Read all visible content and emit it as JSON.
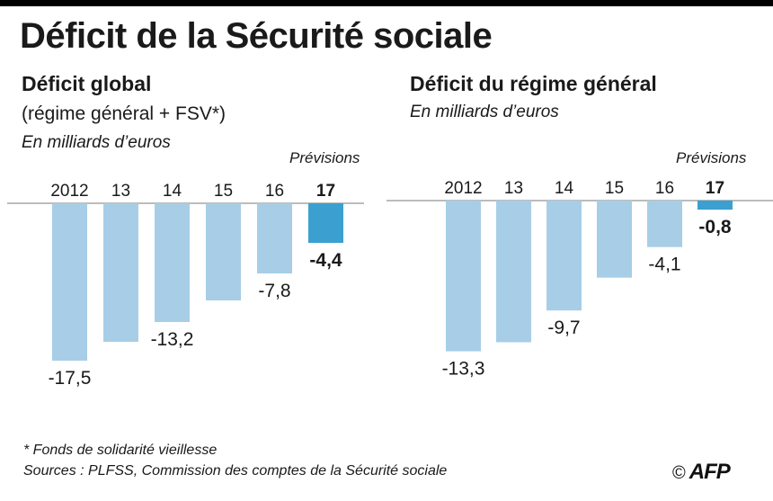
{
  "title": "Déficit de la Sécurité sociale",
  "left_panel": {
    "heading": "Déficit global",
    "subheading": "(régime général + FSV*)",
    "unit": "En milliards d’euros",
    "forecast_label": "Prévisions"
  },
  "right_panel": {
    "heading": "Déficit du régime général",
    "unit": "En milliards d’euros",
    "forecast_label": "Prévisions"
  },
  "chart_data": [
    {
      "type": "bar",
      "title": "Déficit global (régime général + FSV*)",
      "ylabel": "En milliards d’euros",
      "categories": [
        "2012",
        "13",
        "14",
        "15",
        "16",
        "17"
      ],
      "values": [
        -17.5,
        -15.4,
        -13.2,
        -10.8,
        -7.8,
        -4.4
      ],
      "labels": [
        "-17,5",
        "",
        "-13,2",
        "",
        "-7,8",
        "-4,4"
      ],
      "forecast_index": 5,
      "ylim": [
        -20,
        0
      ]
    },
    {
      "type": "bar",
      "title": "Déficit du régime général",
      "ylabel": "En milliards d’euros",
      "categories": [
        "2012",
        "13",
        "14",
        "15",
        "16",
        "17"
      ],
      "values": [
        -13.3,
        -12.5,
        -9.7,
        -6.8,
        -4.1,
        -0.8
      ],
      "labels": [
        "-13,3",
        "",
        "-9,7",
        "",
        "-4,1",
        "-0,8"
      ],
      "forecast_index": 5,
      "ylim": [
        -15,
        0
      ]
    }
  ],
  "colors": {
    "bar": "#a8cde6",
    "forecast": "#3ba0cf",
    "axis": "#7a7a7a",
    "text": "#1a1a1a"
  },
  "footnote": "* Fonds de solidarité vieillesse",
  "sources": "Sources : PLFSS, Commission des comptes de la Sécurité sociale",
  "credit": {
    "copyright": "©",
    "agency": "AFP"
  }
}
